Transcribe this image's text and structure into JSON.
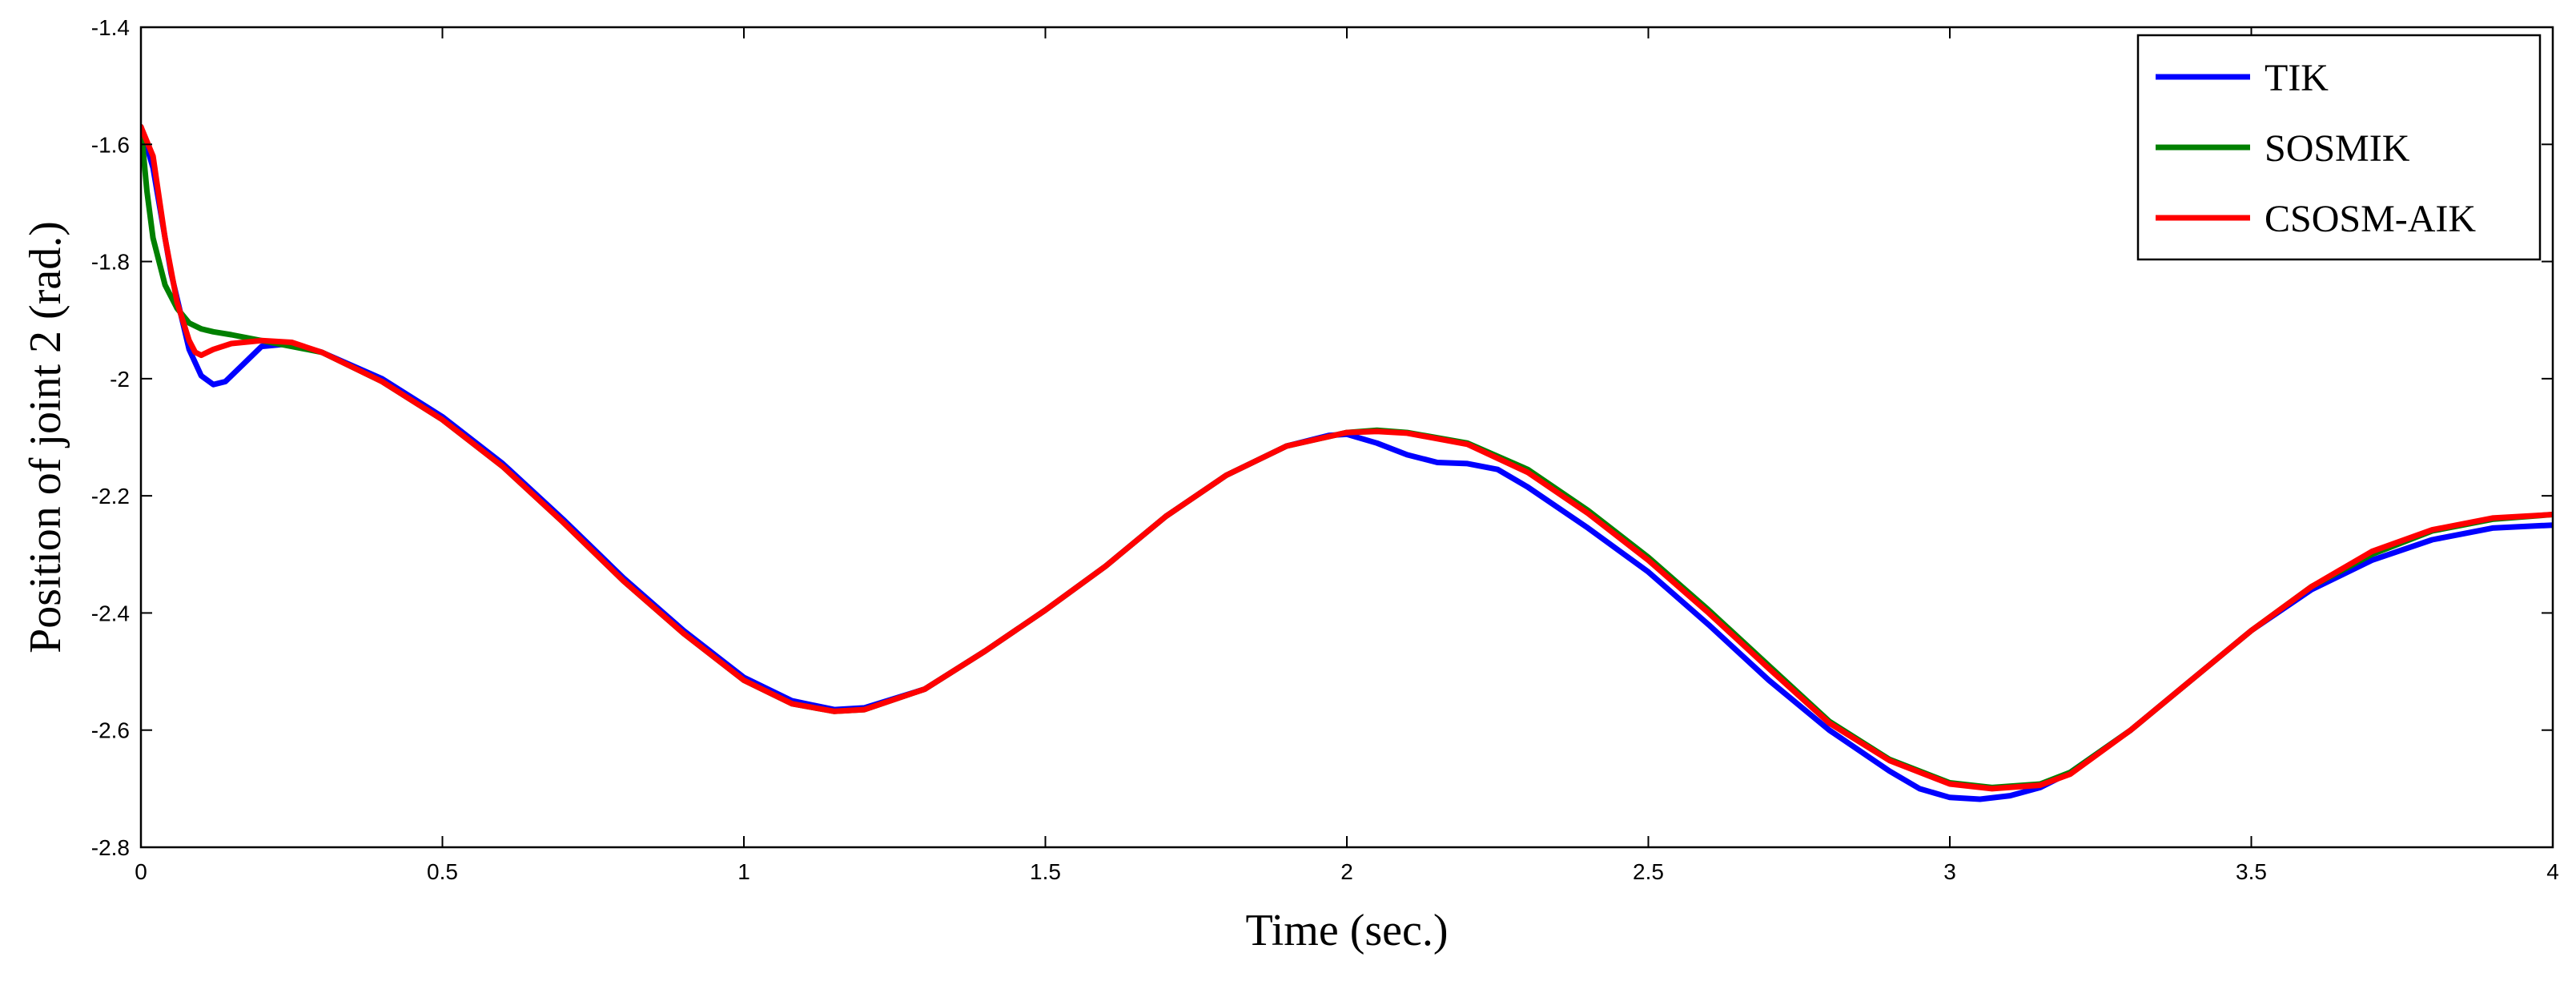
{
  "chart_data": {
    "type": "line",
    "title": "",
    "xlabel": "Time (sec.)",
    "ylabel": "Position of joint 2 (rad.)",
    "xlim": [
      0,
      4
    ],
    "ylim": [
      -2.8,
      -1.4
    ],
    "x_ticks": [
      0,
      0.5,
      1,
      1.5,
      2,
      2.5,
      3,
      3.5,
      4
    ],
    "x_tick_labels": [
      "0",
      "0.5",
      "1",
      "1.5",
      "2",
      "2.5",
      "3",
      "3.5",
      "4"
    ],
    "y_ticks": [
      -2.8,
      -2.6,
      -2.4,
      -2.2,
      -2.0,
      -1.8,
      -1.6,
      -1.4
    ],
    "y_tick_labels": [
      "-2.8",
      "-2.6",
      "-2.4",
      "-2.2",
      "-2",
      "-1.8",
      "-1.6",
      "-1.4"
    ],
    "grid": false,
    "legend_position": "top-right",
    "series": [
      {
        "name": "TIK",
        "color": "#0000ff",
        "points": [
          [
            0,
            -1.57
          ],
          [
            0.02,
            -1.64
          ],
          [
            0.05,
            -1.82
          ],
          [
            0.08,
            -1.95
          ],
          [
            0.1,
            -1.995
          ],
          [
            0.12,
            -2.01
          ],
          [
            0.14,
            -2.005
          ],
          [
            0.17,
            -1.975
          ],
          [
            0.2,
            -1.945
          ],
          [
            0.25,
            -1.94
          ],
          [
            0.3,
            -1.955
          ],
          [
            0.4,
            -2.0
          ],
          [
            0.5,
            -2.065
          ],
          [
            0.6,
            -2.145
          ],
          [
            0.7,
            -2.24
          ],
          [
            0.8,
            -2.34
          ],
          [
            0.9,
            -2.43
          ],
          [
            1.0,
            -2.51
          ],
          [
            1.08,
            -2.55
          ],
          [
            1.15,
            -2.565
          ],
          [
            1.2,
            -2.562
          ],
          [
            1.3,
            -2.53
          ],
          [
            1.4,
            -2.465
          ],
          [
            1.5,
            -2.395
          ],
          [
            1.6,
            -2.32
          ],
          [
            1.7,
            -2.235
          ],
          [
            1.8,
            -2.165
          ],
          [
            1.9,
            -2.115
          ],
          [
            1.97,
            -2.097
          ],
          [
            2.0,
            -2.095
          ],
          [
            2.05,
            -2.11
          ],
          [
            2.1,
            -2.13
          ],
          [
            2.15,
            -2.143
          ],
          [
            2.2,
            -2.145
          ],
          [
            2.25,
            -2.155
          ],
          [
            2.3,
            -2.185
          ],
          [
            2.4,
            -2.255
          ],
          [
            2.5,
            -2.33
          ],
          [
            2.6,
            -2.42
          ],
          [
            2.7,
            -2.515
          ],
          [
            2.8,
            -2.6
          ],
          [
            2.9,
            -2.67
          ],
          [
            2.95,
            -2.7
          ],
          [
            3.0,
            -2.715
          ],
          [
            3.05,
            -2.718
          ],
          [
            3.1,
            -2.712
          ],
          [
            3.15,
            -2.698
          ],
          [
            3.2,
            -2.672
          ],
          [
            3.3,
            -2.6
          ],
          [
            3.4,
            -2.515
          ],
          [
            3.5,
            -2.43
          ],
          [
            3.6,
            -2.36
          ],
          [
            3.7,
            -2.31
          ],
          [
            3.8,
            -2.275
          ],
          [
            3.9,
            -2.255
          ],
          [
            4.0,
            -2.25
          ]
        ]
      },
      {
        "name": "SOSMIK",
        "color": "#008000",
        "points": [
          [
            0,
            -1.57
          ],
          [
            0.01,
            -1.68
          ],
          [
            0.02,
            -1.76
          ],
          [
            0.04,
            -1.84
          ],
          [
            0.06,
            -1.88
          ],
          [
            0.08,
            -1.905
          ],
          [
            0.1,
            -1.915
          ],
          [
            0.12,
            -1.92
          ],
          [
            0.15,
            -1.925
          ],
          [
            0.2,
            -1.935
          ],
          [
            0.3,
            -1.955
          ],
          [
            0.4,
            -2.005
          ],
          [
            0.5,
            -2.07
          ],
          [
            0.6,
            -2.15
          ],
          [
            0.7,
            -2.245
          ],
          [
            0.8,
            -2.345
          ],
          [
            0.9,
            -2.435
          ],
          [
            1.0,
            -2.515
          ],
          [
            1.08,
            -2.555
          ],
          [
            1.15,
            -2.568
          ],
          [
            1.2,
            -2.565
          ],
          [
            1.3,
            -2.53
          ],
          [
            1.4,
            -2.465
          ],
          [
            1.5,
            -2.395
          ],
          [
            1.6,
            -2.32
          ],
          [
            1.7,
            -2.235
          ],
          [
            1.8,
            -2.165
          ],
          [
            1.9,
            -2.115
          ],
          [
            2.0,
            -2.092
          ],
          [
            2.05,
            -2.088
          ],
          [
            2.1,
            -2.092
          ],
          [
            2.2,
            -2.11
          ],
          [
            2.3,
            -2.155
          ],
          [
            2.4,
            -2.225
          ],
          [
            2.5,
            -2.305
          ],
          [
            2.6,
            -2.395
          ],
          [
            2.7,
            -2.49
          ],
          [
            2.8,
            -2.585
          ],
          [
            2.9,
            -2.65
          ],
          [
            3.0,
            -2.69
          ],
          [
            3.07,
            -2.698
          ],
          [
            3.15,
            -2.692
          ],
          [
            3.2,
            -2.672
          ],
          [
            3.3,
            -2.6
          ],
          [
            3.4,
            -2.515
          ],
          [
            3.5,
            -2.43
          ],
          [
            3.6,
            -2.355
          ],
          [
            3.7,
            -2.3
          ],
          [
            3.8,
            -2.26
          ],
          [
            3.9,
            -2.24
          ],
          [
            4.0,
            -2.232
          ]
        ]
      },
      {
        "name": "CSOSM-AIK",
        "color": "#ff0000",
        "points": [
          [
            0,
            -1.57
          ],
          [
            0.02,
            -1.62
          ],
          [
            0.04,
            -1.76
          ],
          [
            0.06,
            -1.87
          ],
          [
            0.08,
            -1.935
          ],
          [
            0.09,
            -1.955
          ],
          [
            0.1,
            -1.96
          ],
          [
            0.12,
            -1.95
          ],
          [
            0.15,
            -1.94
          ],
          [
            0.2,
            -1.935
          ],
          [
            0.25,
            -1.938
          ],
          [
            0.3,
            -1.955
          ],
          [
            0.4,
            -2.005
          ],
          [
            0.5,
            -2.07
          ],
          [
            0.6,
            -2.15
          ],
          [
            0.7,
            -2.245
          ],
          [
            0.8,
            -2.345
          ],
          [
            0.9,
            -2.435
          ],
          [
            1.0,
            -2.515
          ],
          [
            1.08,
            -2.555
          ],
          [
            1.15,
            -2.568
          ],
          [
            1.2,
            -2.565
          ],
          [
            1.3,
            -2.53
          ],
          [
            1.4,
            -2.465
          ],
          [
            1.5,
            -2.395
          ],
          [
            1.6,
            -2.32
          ],
          [
            1.7,
            -2.235
          ],
          [
            1.8,
            -2.165
          ],
          [
            1.9,
            -2.115
          ],
          [
            2.0,
            -2.092
          ],
          [
            2.05,
            -2.09
          ],
          [
            2.1,
            -2.093
          ],
          [
            2.2,
            -2.112
          ],
          [
            2.3,
            -2.16
          ],
          [
            2.4,
            -2.23
          ],
          [
            2.5,
            -2.31
          ],
          [
            2.6,
            -2.4
          ],
          [
            2.7,
            -2.495
          ],
          [
            2.8,
            -2.588
          ],
          [
            2.9,
            -2.652
          ],
          [
            3.0,
            -2.692
          ],
          [
            3.07,
            -2.7
          ],
          [
            3.15,
            -2.694
          ],
          [
            3.2,
            -2.675
          ],
          [
            3.3,
            -2.6
          ],
          [
            3.4,
            -2.515
          ],
          [
            3.5,
            -2.43
          ],
          [
            3.6,
            -2.355
          ],
          [
            3.7,
            -2.295
          ],
          [
            3.8,
            -2.258
          ],
          [
            3.9,
            -2.238
          ],
          [
            4.0,
            -2.232
          ]
        ]
      }
    ]
  }
}
